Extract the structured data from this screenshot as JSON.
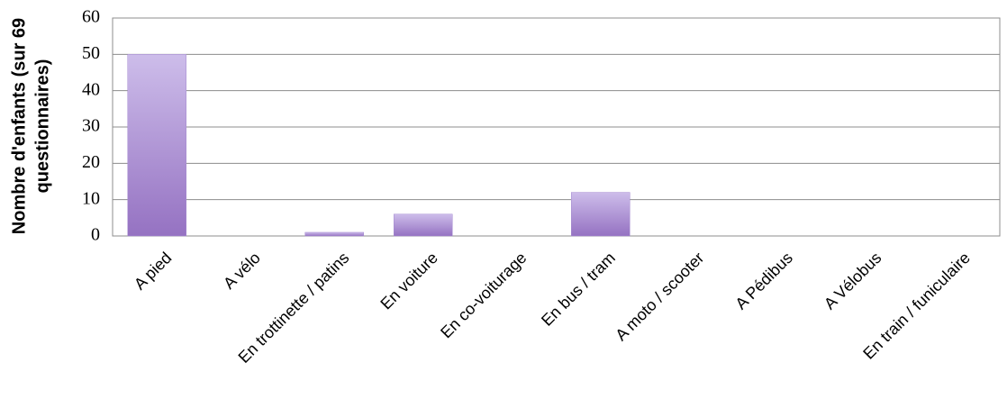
{
  "chart_data": {
    "type": "bar",
    "y_label": [
      "Nombre d'enfants (sur 69",
      "questionnaires)"
    ],
    "categories": [
      "A pied",
      "A vélo",
      "En trottinette / patins",
      "En voiture",
      "En co-voiturage",
      "En bus / tram",
      "A moto / scooter",
      "A Pédibus",
      "A Vélobus",
      "En train / funiculaire"
    ],
    "values": [
      50,
      0,
      1,
      6,
      0,
      12,
      0,
      0,
      0,
      0
    ],
    "color": "#a58bd0",
    "ylim": [
      0,
      60
    ],
    "yticks": [
      0,
      10,
      20,
      30,
      40,
      50,
      60
    ],
    "grid": true
  }
}
